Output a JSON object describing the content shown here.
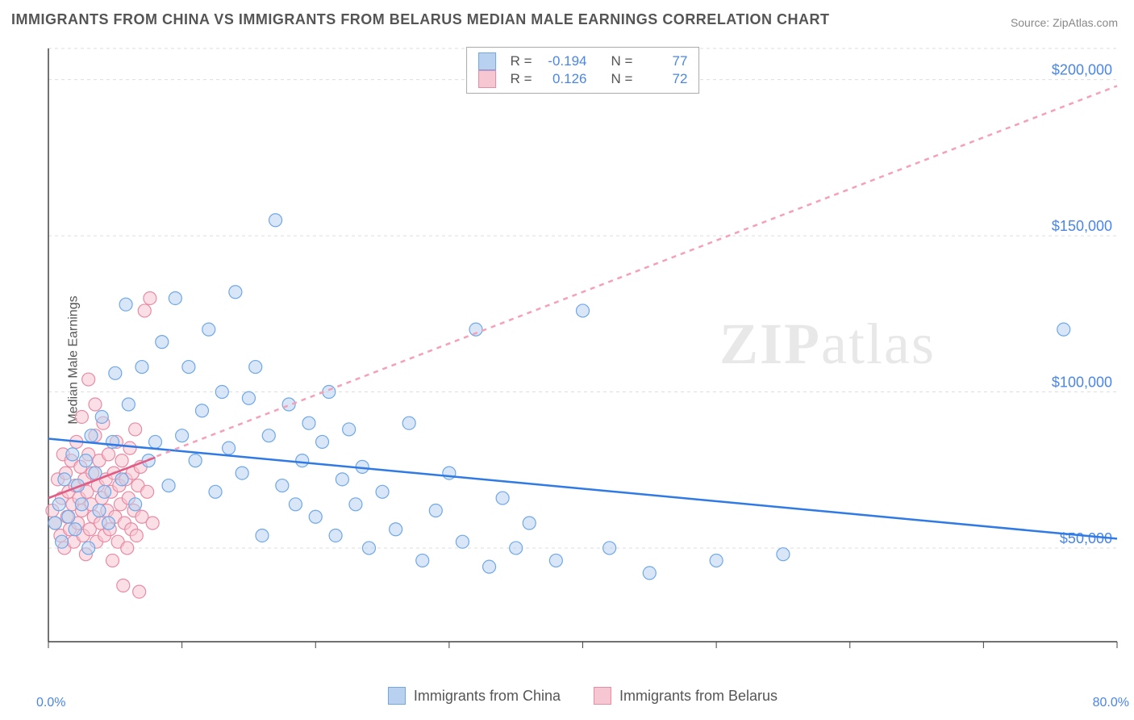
{
  "title": "IMMIGRANTS FROM CHINA VS IMMIGRANTS FROM BELARUS MEDIAN MALE EARNINGS CORRELATION CHART",
  "source": "Source: ZipAtlas.com",
  "ylabel": "Median Male Earnings",
  "watermark_a": "ZIP",
  "watermark_b": "atlas",
  "chart": {
    "type": "scatter",
    "background_color": "#ffffff",
    "grid_color": "#dddddd",
    "axis_color": "#444444",
    "xlim": [
      0,
      80
    ],
    "ylim": [
      20000,
      210000
    ],
    "x_ticks": [
      0,
      10,
      20,
      30,
      40,
      50,
      60,
      70,
      80
    ],
    "x_tick_labels_visible": [
      "0.0%",
      "80.0%"
    ],
    "y_ticks": [
      50000,
      100000,
      150000,
      200000
    ],
    "y_tick_labels": [
      "$50,000",
      "$100,000",
      "$150,000",
      "$200,000"
    ],
    "y_label_color": "#4a86e8",
    "x_label_color": "#4a86e8",
    "marker_radius": 8,
    "marker_opacity": 0.55,
    "line_width": 2.5,
    "series": [
      {
        "name": "Immigrants from China",
        "color_fill": "#b8d1f0",
        "color_stroke": "#6fa8e8",
        "trend_color": "#2f7ae5",
        "trend_solid": true,
        "trend": {
          "y_at_x0": 85000,
          "y_at_xmax": 53000
        },
        "R": "-0.194",
        "N": "77",
        "points": [
          [
            0.5,
            58000
          ],
          [
            0.8,
            64000
          ],
          [
            1.0,
            52000
          ],
          [
            1.2,
            72000
          ],
          [
            1.5,
            60000
          ],
          [
            1.8,
            80000
          ],
          [
            2.0,
            56000
          ],
          [
            2.2,
            70000
          ],
          [
            2.5,
            64000
          ],
          [
            2.8,
            78000
          ],
          [
            3.0,
            50000
          ],
          [
            3.2,
            86000
          ],
          [
            3.5,
            74000
          ],
          [
            3.8,
            62000
          ],
          [
            4.0,
            92000
          ],
          [
            4.2,
            68000
          ],
          [
            4.5,
            58000
          ],
          [
            4.8,
            84000
          ],
          [
            5.0,
            106000
          ],
          [
            5.5,
            72000
          ],
          [
            5.8,
            128000
          ],
          [
            6.0,
            96000
          ],
          [
            6.5,
            64000
          ],
          [
            7.0,
            108000
          ],
          [
            7.5,
            78000
          ],
          [
            8.0,
            84000
          ],
          [
            8.5,
            116000
          ],
          [
            9.0,
            70000
          ],
          [
            9.5,
            130000
          ],
          [
            10.0,
            86000
          ],
          [
            10.5,
            108000
          ],
          [
            11.0,
            78000
          ],
          [
            11.5,
            94000
          ],
          [
            12.0,
            120000
          ],
          [
            12.5,
            68000
          ],
          [
            13.0,
            100000
          ],
          [
            13.5,
            82000
          ],
          [
            14.0,
            132000
          ],
          [
            14.5,
            74000
          ],
          [
            15.0,
            98000
          ],
          [
            15.5,
            108000
          ],
          [
            16.0,
            54000
          ],
          [
            16.5,
            86000
          ],
          [
            17.0,
            155000
          ],
          [
            17.5,
            70000
          ],
          [
            18.0,
            96000
          ],
          [
            18.5,
            64000
          ],
          [
            19.0,
            78000
          ],
          [
            19.5,
            90000
          ],
          [
            20.0,
            60000
          ],
          [
            20.5,
            84000
          ],
          [
            21.0,
            100000
          ],
          [
            21.5,
            54000
          ],
          [
            22.0,
            72000
          ],
          [
            22.5,
            88000
          ],
          [
            23.0,
            64000
          ],
          [
            23.5,
            76000
          ],
          [
            24.0,
            50000
          ],
          [
            25.0,
            68000
          ],
          [
            26.0,
            56000
          ],
          [
            27.0,
            90000
          ],
          [
            28.0,
            46000
          ],
          [
            29.0,
            62000
          ],
          [
            30.0,
            74000
          ],
          [
            31.0,
            52000
          ],
          [
            32.0,
            120000
          ],
          [
            33.0,
            44000
          ],
          [
            34.0,
            66000
          ],
          [
            35.0,
            50000
          ],
          [
            36.0,
            58000
          ],
          [
            38.0,
            46000
          ],
          [
            40.0,
            126000
          ],
          [
            42.0,
            50000
          ],
          [
            45.0,
            42000
          ],
          [
            50.0,
            46000
          ],
          [
            55.0,
            48000
          ],
          [
            76.0,
            120000
          ]
        ]
      },
      {
        "name": "Immigrants from Belarus",
        "color_fill": "#f6c6d2",
        "color_stroke": "#e88ba4",
        "trend_color": "#f5a0b8",
        "trend_solid": false,
        "trend": {
          "y_at_x0": 66000,
          "y_at_xmax": 198000
        },
        "solid_trend_segment": {
          "x0": 0,
          "y0": 66000,
          "x1": 8,
          "y1": 79000
        },
        "R": "0.126",
        "N": "72",
        "points": [
          [
            0.3,
            62000
          ],
          [
            0.5,
            58000
          ],
          [
            0.7,
            72000
          ],
          [
            0.9,
            54000
          ],
          [
            1.0,
            66000
          ],
          [
            1.1,
            80000
          ],
          [
            1.2,
            50000
          ],
          [
            1.3,
            74000
          ],
          [
            1.4,
            60000
          ],
          [
            1.5,
            68000
          ],
          [
            1.6,
            56000
          ],
          [
            1.7,
            78000
          ],
          [
            1.8,
            64000
          ],
          [
            1.9,
            52000
          ],
          [
            2.0,
            70000
          ],
          [
            2.1,
            84000
          ],
          [
            2.2,
            58000
          ],
          [
            2.3,
            66000
          ],
          [
            2.4,
            76000
          ],
          [
            2.5,
            62000
          ],
          [
            2.6,
            54000
          ],
          [
            2.7,
            72000
          ],
          [
            2.8,
            48000
          ],
          [
            2.9,
            68000
          ],
          [
            3.0,
            80000
          ],
          [
            3.1,
            56000
          ],
          [
            3.2,
            64000
          ],
          [
            3.3,
            74000
          ],
          [
            3.4,
            60000
          ],
          [
            3.5,
            86000
          ],
          [
            3.6,
            52000
          ],
          [
            3.7,
            70000
          ],
          [
            3.8,
            78000
          ],
          [
            3.9,
            58000
          ],
          [
            4.0,
            66000
          ],
          [
            4.1,
            90000
          ],
          [
            4.2,
            54000
          ],
          [
            4.3,
            72000
          ],
          [
            4.4,
            62000
          ],
          [
            4.5,
            80000
          ],
          [
            4.6,
            56000
          ],
          [
            4.7,
            68000
          ],
          [
            4.8,
            46000
          ],
          [
            4.9,
            74000
          ],
          [
            5.0,
            60000
          ],
          [
            5.1,
            84000
          ],
          [
            5.2,
            52000
          ],
          [
            5.3,
            70000
          ],
          [
            5.4,
            64000
          ],
          [
            5.5,
            78000
          ],
          [
            5.6,
            38000
          ],
          [
            5.7,
            58000
          ],
          [
            5.8,
            72000
          ],
          [
            5.9,
            50000
          ],
          [
            6.0,
            66000
          ],
          [
            6.1,
            82000
          ],
          [
            6.2,
            56000
          ],
          [
            6.3,
            74000
          ],
          [
            6.4,
            62000
          ],
          [
            6.5,
            88000
          ],
          [
            6.6,
            54000
          ],
          [
            6.7,
            70000
          ],
          [
            6.8,
            36000
          ],
          [
            6.9,
            76000
          ],
          [
            7.0,
            60000
          ],
          [
            7.2,
            126000
          ],
          [
            7.4,
            68000
          ],
          [
            7.6,
            130000
          ],
          [
            7.8,
            58000
          ],
          [
            3.0,
            104000
          ],
          [
            2.5,
            92000
          ],
          [
            3.5,
            96000
          ]
        ]
      }
    ]
  },
  "bottom_legend": {
    "items": [
      {
        "label": "Immigrants from China",
        "fill": "#b8d1f0",
        "stroke": "#6fa8e8"
      },
      {
        "label": "Immigrants from Belarus",
        "fill": "#f6c6d2",
        "stroke": "#e88ba4"
      }
    ]
  }
}
